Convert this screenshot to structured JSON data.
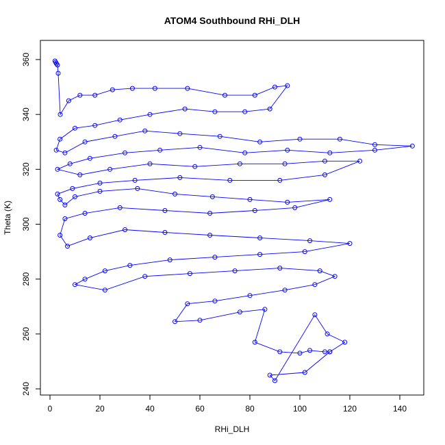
{
  "chart_data": {
    "type": "scatter",
    "title": "ATOM4 Southbound RHi_DLH",
    "xlabel": "RHi_DLH",
    "ylabel": "Theta (K)",
    "xlim": [
      0,
      150
    ],
    "ylim": [
      238,
      364
    ],
    "x_ticks": [
      0,
      20,
      40,
      60,
      80,
      100,
      120,
      140
    ],
    "y_ticks": [
      240,
      260,
      280,
      300,
      320,
      340,
      360
    ],
    "grid": false,
    "legend": "none",
    "style": {
      "line_color": "#0000ff",
      "marker": "open-circle",
      "connected": true
    },
    "series": [
      {
        "x": [
          2.0,
          2.3,
          2.6,
          3.0,
          3.3,
          4.1,
          7.5,
          12.0,
          18.0,
          25.0,
          33.0,
          42.0,
          55.0,
          70.0,
          82.0,
          90.0,
          95.0,
          88.0,
          78.0,
          66.0,
          54.0,
          40.0,
          28.0,
          18.0,
          10.0,
          4.0,
          2.5,
          6.0,
          14.0,
          26.0,
          38.0,
          52.0,
          68.0,
          84.0,
          100.0,
          116.0,
          130.0,
          145.0,
          130.0,
          112.0,
          95.0,
          78.0,
          60.0,
          44.0,
          30.0,
          16.0,
          8.0,
          3.0,
          12.0,
          24.0,
          40.0,
          58.0,
          76.0,
          94.0,
          110.0,
          124.0,
          110.0,
          92.0,
          72.0,
          52.0,
          34.0,
          20.0,
          9.0,
          3.0,
          4.0,
          6.0,
          10.0,
          20.0,
          35.0,
          50.0,
          65.0,
          80.0,
          95.0,
          112.0,
          98.0,
          82.0,
          64.0,
          46.0,
          28.0,
          14.0,
          6.0,
          4.0,
          7.0,
          16.0,
          30.0,
          46.0,
          64.0,
          84.0,
          104.0,
          120.0,
          102.0,
          84.0,
          66.0,
          48.0,
          32.0,
          22.0,
          14.0,
          10.0,
          22.0,
          38.0,
          56.0,
          74.0,
          92.0,
          108.0,
          114.0,
          106.0,
          94.0,
          80.0,
          66.0,
          55.0,
          50.0,
          60.0,
          76.0,
          86.0,
          82.0,
          92.0,
          100.0,
          104.0,
          110.0,
          112.0,
          102.0,
          88.0,
          90.0,
          106.0,
          111.0,
          118.0,
          112.0
        ],
        "y": [
          359.5,
          359.0,
          358.5,
          358.0,
          355.0,
          340.0,
          345.0,
          347.0,
          347.0,
          349.0,
          349.5,
          349.5,
          349.5,
          347.0,
          347.0,
          350.0,
          350.5,
          342.0,
          341.0,
          341.0,
          342.0,
          340.0,
          338.0,
          336.0,
          335.0,
          331.0,
          327.0,
          326.0,
          330.0,
          332.0,
          334.0,
          333.0,
          332.0,
          330.0,
          331.0,
          331.0,
          329.0,
          328.5,
          327.0,
          326.0,
          327.0,
          326.0,
          328.0,
          327.0,
          326.0,
          324.0,
          322.0,
          320.0,
          318.0,
          320.0,
          322.0,
          321.0,
          322.0,
          322.0,
          323.0,
          323.0,
          318.0,
          316.0,
          316.0,
          317.0,
          316.0,
          315.0,
          313.0,
          311.0,
          309.0,
          307.0,
          310.0,
          312.0,
          313.0,
          311.0,
          310.0,
          309.0,
          308.0,
          309.0,
          306.0,
          305.0,
          304.0,
          305.0,
          306.0,
          304.0,
          302.0,
          296.0,
          292.0,
          295.0,
          298.0,
          297.0,
          296.0,
          295.0,
          294.0,
          293.0,
          290.0,
          289.0,
          288.0,
          287.0,
          285.0,
          283.0,
          280.0,
          278.0,
          276.0,
          281.0,
          282.0,
          283.0,
          284.0,
          283.0,
          281.0,
          278.0,
          276.0,
          274.0,
          272.0,
          271.0,
          264.5,
          265.0,
          268.0,
          269.0,
          257.0,
          253.5,
          253.0,
          254.0,
          253.5,
          253.5,
          246.0,
          245.0,
          243.0,
          267.0,
          260.0,
          257.0,
          253.5
        ]
      }
    ]
  }
}
